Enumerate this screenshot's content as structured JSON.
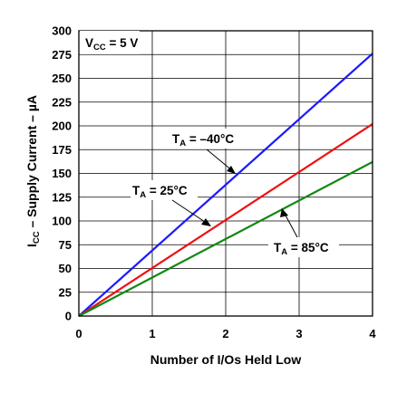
{
  "chart_data": {
    "type": "line",
    "xlabel": "Number of I/Os Held Low",
    "ylabel": {
      "main": "I",
      "sub": "CC",
      "rest": " – Supply Current – µA"
    },
    "xlim": [
      0,
      4
    ],
    "ylim": [
      0,
      300
    ],
    "xticks": [
      "0",
      "1",
      "2",
      "3",
      "4"
    ],
    "yticks": [
      "0",
      "25",
      "50",
      "75",
      "100",
      "125",
      "150",
      "175",
      "200",
      "225",
      "250",
      "275",
      "300"
    ],
    "grid": true,
    "condition": {
      "main": "V",
      "sub": "CC",
      "rest": " = 5 V"
    },
    "series": [
      {
        "name": "TA = –40°C",
        "color": "#1a1aff",
        "x": [
          0,
          4
        ],
        "y": [
          0,
          276
        ]
      },
      {
        "name": "TA = 25°C",
        "color": "#ee1111",
        "x": [
          0,
          4
        ],
        "y": [
          0,
          202
        ]
      },
      {
        "name": "TA = 85°C",
        "color": "#118811",
        "x": [
          0,
          4
        ],
        "y": [
          0,
          162
        ]
      }
    ],
    "annotations": [
      {
        "main": "T",
        "sub": "A",
        "rest": " = –40°C",
        "series": 0
      },
      {
        "main": "T",
        "sub": "A",
        "rest": " = 25°C",
        "series": 1
      },
      {
        "main": "T",
        "sub": "A",
        "rest": " = 85°C",
        "series": 2
      }
    ]
  }
}
